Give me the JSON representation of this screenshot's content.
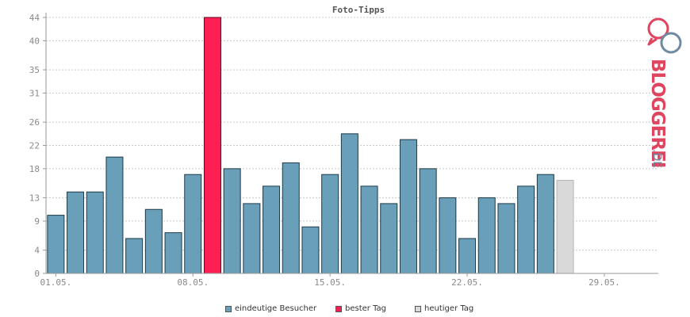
{
  "chart_data": {
    "type": "bar",
    "title": "Foto-Tipps",
    "ylim": [
      0,
      44
    ],
    "y_ticks": [
      0,
      4,
      9,
      13,
      18,
      22,
      26,
      31,
      35,
      40,
      44
    ],
    "grid": true,
    "x_tick_labels": [
      "01.05.",
      "08.05.",
      "15.05.",
      "22.05.",
      "29.05."
    ],
    "x_tick_positions": [
      1,
      8,
      15,
      22,
      29
    ],
    "days": 31,
    "series": [
      {
        "name": "eindeutige Besucher",
        "color": "#6a9fba",
        "values": [
          10,
          14,
          14,
          20,
          6,
          11,
          7,
          17,
          44,
          18,
          12,
          15,
          19,
          8,
          17,
          24,
          15,
          12,
          23,
          18,
          13,
          6,
          13,
          12,
          15,
          17,
          16
        ]
      }
    ],
    "best_day_index": 8,
    "today_index": 26,
    "legend": [
      {
        "label": "eindeutige Besucher",
        "color": "#6a9fba"
      },
      {
        "label": "bester Tag",
        "color": "#ff1f55"
      },
      {
        "label": "heutiger Tag",
        "color": "#d9d9d9"
      }
    ],
    "legend_placement": "bottom-center"
  },
  "logo": {
    "text": "BLOGGEREI",
    "suffix": ".DE",
    "icon": "bloggerei-logo-icon",
    "colors": {
      "red": "#e0455f",
      "grey": "#6f8aa1"
    }
  }
}
